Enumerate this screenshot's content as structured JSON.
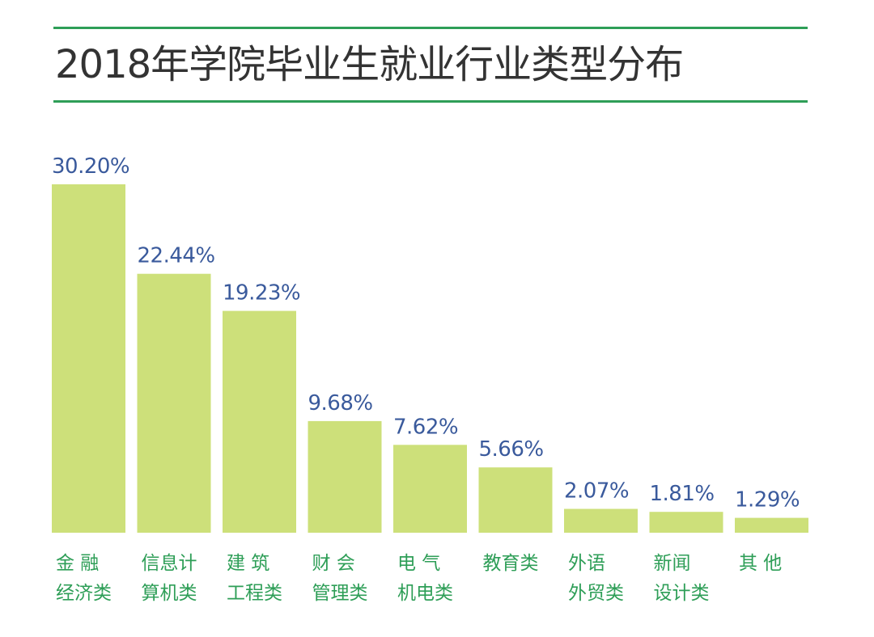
{
  "title": "2018年学院毕业生就业行业类型分布",
  "colors": {
    "bar": "#cde07a",
    "value_label": "#3a5a9c",
    "category_label": "#2e9e57",
    "rule": "#2e9e57",
    "title": "#333333"
  },
  "chart_data": {
    "type": "bar",
    "title": "2018年学院毕业生就业行业类型分布",
    "categories": [
      [
        "金 融",
        "经济类"
      ],
      [
        "信息计",
        "算机类"
      ],
      [
        "建 筑",
        "工程类"
      ],
      [
        "财 会",
        "管理类"
      ],
      [
        "电 气",
        "机电类"
      ],
      [
        "教育类"
      ],
      [
        "外语",
        "外贸类"
      ],
      [
        "新闻",
        "设计类"
      ],
      [
        "其 他"
      ]
    ],
    "values": [
      30.2,
      22.44,
      19.23,
      9.68,
      7.62,
      5.66,
      2.07,
      1.81,
      1.29
    ],
    "value_labels": [
      "30.20%",
      "22.44%",
      "19.23%",
      "9.68%",
      "7.62%",
      "5.66%",
      "2.07%",
      "1.81%",
      "1.29%"
    ],
    "unit": "%",
    "xlabel": "",
    "ylabel": "",
    "ylim": [
      0,
      30.2
    ],
    "grid": false,
    "legend": "none"
  }
}
